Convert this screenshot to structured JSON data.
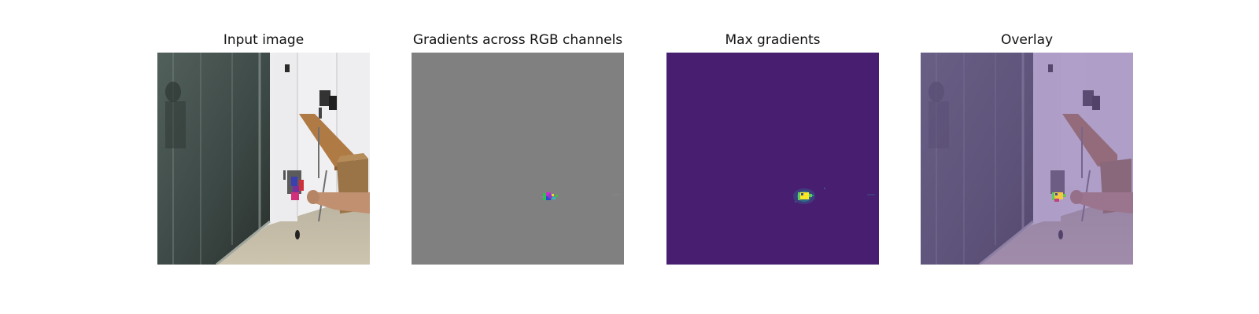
{
  "panels": [
    {
      "title": "Input image"
    },
    {
      "title": "Gradients across RGB channels"
    },
    {
      "title": "Max gradients"
    },
    {
      "title": "Overlay"
    }
  ],
  "colors": {
    "gradient_background": "#808080",
    "max_gradient_background": "#481f70",
    "max_gradient_peak": "#fde725",
    "overlay_tint": "#7b5ea7"
  }
}
